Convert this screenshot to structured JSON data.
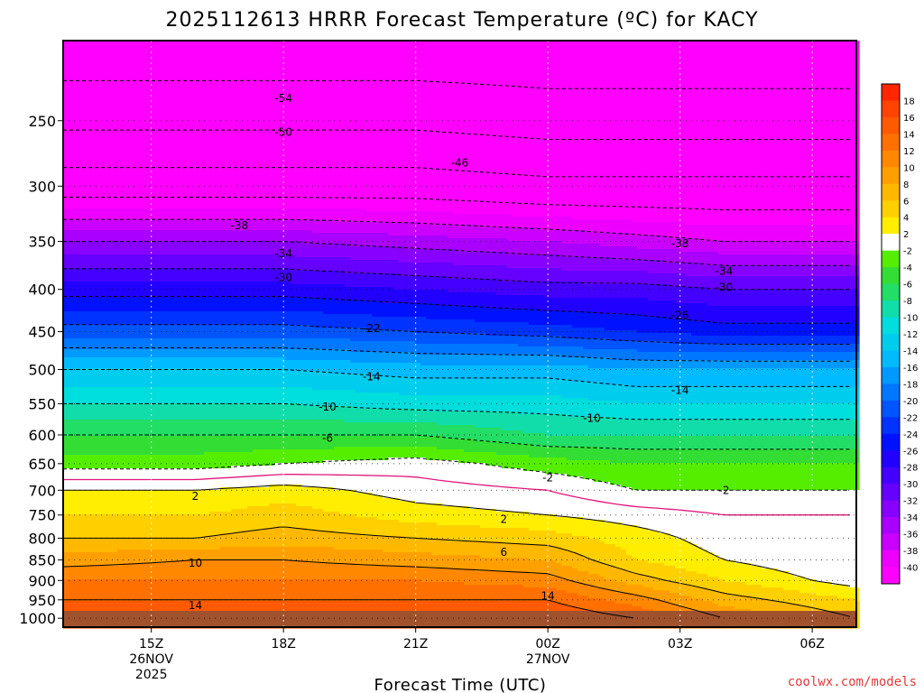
{
  "chart_data": {
    "type": "heatmap",
    "title": "2025112613 HRRR Forecast Temperature (ºC) for KACY",
    "xlabel": "Forecast Time (UTC)",
    "ylabel": "",
    "x_ticks": [
      {
        "label": "15Z",
        "sub": [
          "26NOV",
          "2025"
        ],
        "hour": 15
      },
      {
        "label": "18Z",
        "sub": [],
        "hour": 18
      },
      {
        "label": "21Z",
        "sub": [],
        "hour": 21
      },
      {
        "label": "00Z",
        "sub": [
          "27NOV"
        ],
        "hour": 24
      },
      {
        "label": "03Z",
        "sub": [],
        "hour": 27
      },
      {
        "label": "06Z",
        "sub": [],
        "hour": 30
      }
    ],
    "x_range_hours": [
      13,
      31
    ],
    "y_ticks": [
      250,
      300,
      350,
      400,
      450,
      500,
      550,
      600,
      650,
      700,
      750,
      800,
      850,
      900,
      950,
      1000
    ],
    "y_range_hPa": [
      200,
      1025
    ],
    "y_scale": "log",
    "colorbar": {
      "labels": [
        "18",
        "16",
        "14",
        "12",
        "10",
        "8",
        "6",
        "4",
        "2",
        "-2",
        "-4",
        "-6",
        "-8",
        "-10",
        "-12",
        "-14",
        "-16",
        "-18",
        "-20",
        "-22",
        "-24",
        "-26",
        "-28",
        "-30",
        "-32",
        "-34",
        "-36",
        "-38",
        "-40"
      ],
      "bands": [
        {
          "max": 99,
          "color": "#ff2600"
        },
        {
          "max": 18,
          "color": "#ff4400"
        },
        {
          "max": 16,
          "color": "#ff5a00"
        },
        {
          "max": 14,
          "color": "#ff7000"
        },
        {
          "max": 12,
          "color": "#ff8800"
        },
        {
          "max": 10,
          "color": "#ffa000"
        },
        {
          "max": 8,
          "color": "#ffb800"
        },
        {
          "max": 6,
          "color": "#ffd000"
        },
        {
          "max": 4,
          "color": "#ffee00"
        },
        {
          "max": 2,
          "color": "#ffffff"
        },
        {
          "max": -2,
          "color": "#55ee00"
        },
        {
          "max": -4,
          "color": "#33dd33"
        },
        {
          "max": -6,
          "color": "#22dd66"
        },
        {
          "max": -8,
          "color": "#11ddaa"
        },
        {
          "max": -10,
          "color": "#00dddd"
        },
        {
          "max": -12,
          "color": "#00ccee"
        },
        {
          "max": -14,
          "color": "#00bbff"
        },
        {
          "max": -16,
          "color": "#0099ff"
        },
        {
          "max": -18,
          "color": "#0077ff"
        },
        {
          "max": -20,
          "color": "#0055ff"
        },
        {
          "max": -22,
          "color": "#0033ff"
        },
        {
          "max": -24,
          "color": "#0011ff"
        },
        {
          "max": -26,
          "color": "#2200ff"
        },
        {
          "max": -28,
          "color": "#4400ff"
        },
        {
          "max": -30,
          "color": "#6600ff"
        },
        {
          "max": -32,
          "color": "#8800ff"
        },
        {
          "max": -34,
          "color": "#aa00ff"
        },
        {
          "max": -36,
          "color": "#cc00ff"
        },
        {
          "max": -38,
          "color": "#ee00ff"
        },
        {
          "max": -40,
          "color": "#ff00ff"
        }
      ]
    },
    "profiles": [
      {
        "hour": 13,
        "levels": [
          {
            "p": 1000,
            "t": 16
          },
          {
            "p": 950,
            "t": 14
          },
          {
            "p": 900,
            "t": 12
          },
          {
            "p": 850,
            "t": 9
          },
          {
            "p": 800,
            "t": 6
          },
          {
            "p": 750,
            "t": 4
          },
          {
            "p": 700,
            "t": 2
          },
          {
            "p": 650,
            "t": -3
          },
          {
            "p": 600,
            "t": -6
          },
          {
            "p": 550,
            "t": -10
          },
          {
            "p": 500,
            "t": -14
          },
          {
            "p": 450,
            "t": -21
          },
          {
            "p": 400,
            "t": -27
          },
          {
            "p": 350,
            "t": -34
          },
          {
            "p": 300,
            "t": -44
          },
          {
            "p": 250,
            "t": -51
          },
          {
            "p": 200,
            "t": -57
          }
        ]
      },
      {
        "hour": 16,
        "levels": [
          {
            "p": 1000,
            "t": 16
          },
          {
            "p": 950,
            "t": 14
          },
          {
            "p": 900,
            "t": 12
          },
          {
            "p": 850,
            "t": 10
          },
          {
            "p": 800,
            "t": 6
          },
          {
            "p": 750,
            "t": 4
          },
          {
            "p": 700,
            "t": 2
          },
          {
            "p": 650,
            "t": -3
          },
          {
            "p": 600,
            "t": -6
          },
          {
            "p": 550,
            "t": -10
          },
          {
            "p": 500,
            "t": -14
          },
          {
            "p": 450,
            "t": -21
          },
          {
            "p": 400,
            "t": -27
          },
          {
            "p": 350,
            "t": -34
          },
          {
            "p": 300,
            "t": -44
          },
          {
            "p": 250,
            "t": -51
          },
          {
            "p": 200,
            "t": -57
          }
        ]
      },
      {
        "hour": 18,
        "levels": [
          {
            "p": 1000,
            "t": 16
          },
          {
            "p": 950,
            "t": 14
          },
          {
            "p": 900,
            "t": 12
          },
          {
            "p": 850,
            "t": 10
          },
          {
            "p": 800,
            "t": 7
          },
          {
            "p": 750,
            "t": 5
          },
          {
            "p": 700,
            "t": 3
          },
          {
            "p": 650,
            "t": -2
          },
          {
            "p": 600,
            "t": -6
          },
          {
            "p": 550,
            "t": -10
          },
          {
            "p": 500,
            "t": -14
          },
          {
            "p": 450,
            "t": -21
          },
          {
            "p": 400,
            "t": -27
          },
          {
            "p": 350,
            "t": -34
          },
          {
            "p": 300,
            "t": -44
          },
          {
            "p": 250,
            "t": -51
          },
          {
            "p": 200,
            "t": -57
          }
        ]
      },
      {
        "hour": 21,
        "levels": [
          {
            "p": 1000,
            "t": 16
          },
          {
            "p": 950,
            "t": 14
          },
          {
            "p": 900,
            "t": 12
          },
          {
            "p": 850,
            "t": 9
          },
          {
            "p": 800,
            "t": 6
          },
          {
            "p": 750,
            "t": 3
          },
          {
            "p": 700,
            "t": 1
          },
          {
            "p": 650,
            "t": -1
          },
          {
            "p": 600,
            "t": -6
          },
          {
            "p": 550,
            "t": -11
          },
          {
            "p": 500,
            "t": -15
          },
          {
            "p": 450,
            "t": -22
          },
          {
            "p": 400,
            "t": -28
          },
          {
            "p": 350,
            "t": -35
          },
          {
            "p": 300,
            "t": -44
          },
          {
            "p": 250,
            "t": -51
          },
          {
            "p": 200,
            "t": -57
          }
        ]
      },
      {
        "hour": 24,
        "levels": [
          {
            "p": 1000,
            "t": 16
          },
          {
            "p": 950,
            "t": 14
          },
          {
            "p": 900,
            "t": 11
          },
          {
            "p": 850,
            "t": 8
          },
          {
            "p": 800,
            "t": 5
          },
          {
            "p": 750,
            "t": 2
          },
          {
            "p": 700,
            "t": 0
          },
          {
            "p": 650,
            "t": -3
          },
          {
            "p": 600,
            "t": -8
          },
          {
            "p": 550,
            "t": -11
          },
          {
            "p": 500,
            "t": -15
          },
          {
            "p": 450,
            "t": -23
          },
          {
            "p": 400,
            "t": -29
          },
          {
            "p": 350,
            "t": -36
          },
          {
            "p": 300,
            "t": -45
          },
          {
            "p": 250,
            "t": -52
          },
          {
            "p": 200,
            "t": -57
          }
        ]
      },
      {
        "hour": 26,
        "levels": [
          {
            "p": 1000,
            "t": 14
          },
          {
            "p": 950,
            "t": 11
          },
          {
            "p": 900,
            "t": 7
          },
          {
            "p": 850,
            "t": 4
          },
          {
            "p": 800,
            "t": 3
          },
          {
            "p": 750,
            "t": 1
          },
          {
            "p": 700,
            "t": -2
          },
          {
            "p": 650,
            "t": -4
          },
          {
            "p": 600,
            "t": -8
          },
          {
            "p": 550,
            "t": -12
          },
          {
            "p": 500,
            "t": -16
          },
          {
            "p": 450,
            "t": -24
          },
          {
            "p": 400,
            "t": -29
          },
          {
            "p": 350,
            "t": -37
          },
          {
            "p": 300,
            "t": -45
          },
          {
            "p": 250,
            "t": -52
          },
          {
            "p": 200,
            "t": -57
          }
        ]
      },
      {
        "hour": 28,
        "levels": [
          {
            "p": 1000,
            "t": 10
          },
          {
            "p": 950,
            "t": 7
          },
          {
            "p": 900,
            "t": 4
          },
          {
            "p": 850,
            "t": 2
          },
          {
            "p": 800,
            "t": 1
          },
          {
            "p": 750,
            "t": 0
          },
          {
            "p": 700,
            "t": -2
          },
          {
            "p": 650,
            "t": -4
          },
          {
            "p": 600,
            "t": -8
          },
          {
            "p": 550,
            "t": -12
          },
          {
            "p": 500,
            "t": -16
          },
          {
            "p": 450,
            "t": -25
          },
          {
            "p": 400,
            "t": -30
          },
          {
            "p": 350,
            "t": -38
          },
          {
            "p": 300,
            "t": -45
          },
          {
            "p": 250,
            "t": -52
          },
          {
            "p": 200,
            "t": -57
          }
        ]
      },
      {
        "hour": 31,
        "levels": [
          {
            "p": 1000,
            "t": 6
          },
          {
            "p": 950,
            "t": 4
          },
          {
            "p": 900,
            "t": 1
          },
          {
            "p": 850,
            "t": 0
          },
          {
            "p": 800,
            "t": 0
          },
          {
            "p": 750,
            "t": 0
          },
          {
            "p": 700,
            "t": -2
          },
          {
            "p": 650,
            "t": -4
          },
          {
            "p": 600,
            "t": -8
          },
          {
            "p": 550,
            "t": -12
          },
          {
            "p": 500,
            "t": -16
          },
          {
            "p": 450,
            "t": -25
          },
          {
            "p": 400,
            "t": -30
          },
          {
            "p": 350,
            "t": -38
          },
          {
            "p": 300,
            "t": -45
          },
          {
            "p": 250,
            "t": -52
          },
          {
            "p": 200,
            "t": -57
          }
        ]
      }
    ],
    "contour_labels": [
      {
        "value": "-54",
        "hour": 18,
        "p": 235
      },
      {
        "value": "-50",
        "hour": 18,
        "p": 258
      },
      {
        "value": "-46",
        "hour": 22,
        "p": 281
      },
      {
        "value": "-38",
        "hour": 17,
        "p": 335
      },
      {
        "value": "-38",
        "hour": 27,
        "p": 352
      },
      {
        "value": "-34",
        "hour": 18,
        "p": 362
      },
      {
        "value": "-34",
        "hour": 28,
        "p": 380
      },
      {
        "value": "-30",
        "hour": 18,
        "p": 387
      },
      {
        "value": "-30",
        "hour": 28,
        "p": 398
      },
      {
        "value": "-26",
        "hour": 27,
        "p": 430
      },
      {
        "value": "-22",
        "hour": 20,
        "p": 446
      },
      {
        "value": "-14",
        "hour": 20,
        "p": 510
      },
      {
        "value": "-14",
        "hour": 27,
        "p": 530
      },
      {
        "value": "-10",
        "hour": 19,
        "p": 555
      },
      {
        "value": "-10",
        "hour": 25,
        "p": 573
      },
      {
        "value": "-6",
        "hour": 19,
        "p": 605
      },
      {
        "value": "-2",
        "hour": 24,
        "p": 676
      },
      {
        "value": "-2",
        "hour": 28,
        "p": 700
      },
      {
        "value": "2",
        "hour": 16,
        "p": 712
      },
      {
        "value": "2",
        "hour": 23,
        "p": 759
      },
      {
        "value": "6",
        "hour": 23,
        "p": 832
      },
      {
        "value": "10",
        "hour": 16,
        "p": 857
      },
      {
        "value": "14",
        "hour": 16,
        "p": 965
      },
      {
        "value": "14",
        "hour": 24,
        "p": 940
      }
    ]
  },
  "credit": "coolwx.com/models"
}
